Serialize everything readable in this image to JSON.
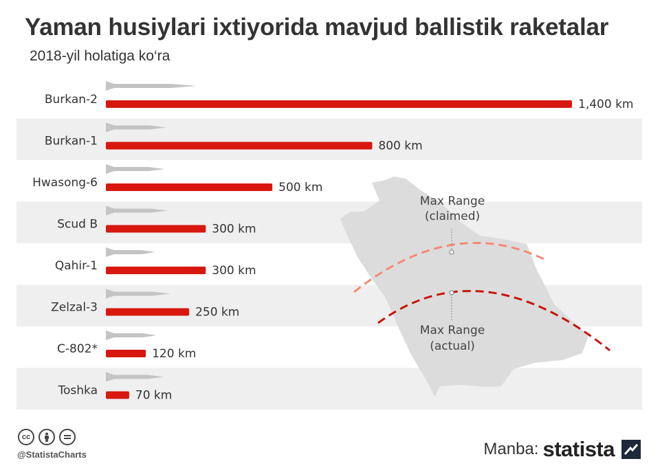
{
  "title": "Yaman husiylari ixtiyorida mavjud ballistik raketalar",
  "subtitle": "2018-yil holatiga ko‘ra",
  "colors": {
    "bar": "#d8180f",
    "stripe": "#efefef",
    "map": "#dcdcdc",
    "missile": "#c4c4c4",
    "claimed_arc": "#f28a73",
    "actual_arc": "#c8140c",
    "text": "#333333"
  },
  "chart_data": {
    "type": "bar",
    "orientation": "horizontal",
    "categories": [
      "Burkan-2",
      "Burkan-1",
      "Hwasong-6",
      "Scud B",
      "Qahir-1",
      "Zelzal-3",
      "C-802*",
      "Toshka"
    ],
    "values": [
      1400,
      800,
      500,
      300,
      300,
      250,
      120,
      70
    ],
    "value_labels": [
      "1,400 km",
      "800 km",
      "500 km",
      "300 km",
      "300 km",
      "250 km",
      "120 km",
      "70 km"
    ],
    "unit": "km",
    "xlim": [
      0,
      1400
    ],
    "grid": false,
    "legend": "none",
    "annotations": [
      {
        "text_line1": "Max Range",
        "text_line2": "(claimed)"
      },
      {
        "text_line1": "Max Range",
        "text_line2": "(actual)"
      }
    ]
  },
  "footer": {
    "license_icons": [
      "cc-icon",
      "attribution-icon",
      "no-derivatives-icon"
    ],
    "cc_text": "cc",
    "handle": "@StatistaCharts",
    "source_label": "Manba:",
    "brand": "statista"
  }
}
